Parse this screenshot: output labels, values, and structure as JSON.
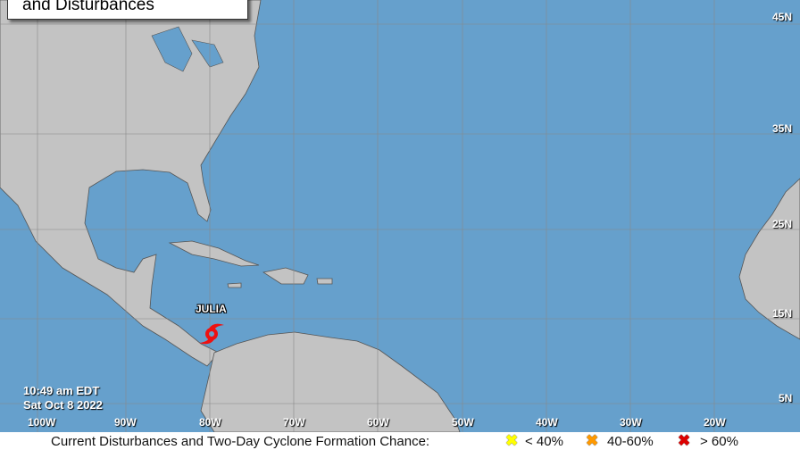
{
  "title": "and Disturbances",
  "timestamp": {
    "time": "10:49 am EDT",
    "date": "Sat Oct 8 2022"
  },
  "longitude_labels": [
    "100W",
    "90W",
    "80W",
    "70W",
    "60W",
    "50W",
    "40W",
    "30W",
    "20W"
  ],
  "latitude_labels": [
    "45N",
    "35N",
    "25N",
    "15N",
    "5N"
  ],
  "storms": [
    {
      "name": "JULIA",
      "icon": "tropical-storm-icon",
      "color": "#ee1111"
    }
  ],
  "legend": {
    "caption": "Current Disturbances and Two-Day Cyclone Formation Chance:",
    "items": [
      {
        "label": "< 40%",
        "color": "#ffff00"
      },
      {
        "label": "40-60%",
        "color": "#ff9900"
      },
      {
        "label": "> 60%",
        "color": "#dd0000"
      }
    ]
  },
  "colors": {
    "ocean": "#66a0cc",
    "land": "#c3c3c3"
  }
}
